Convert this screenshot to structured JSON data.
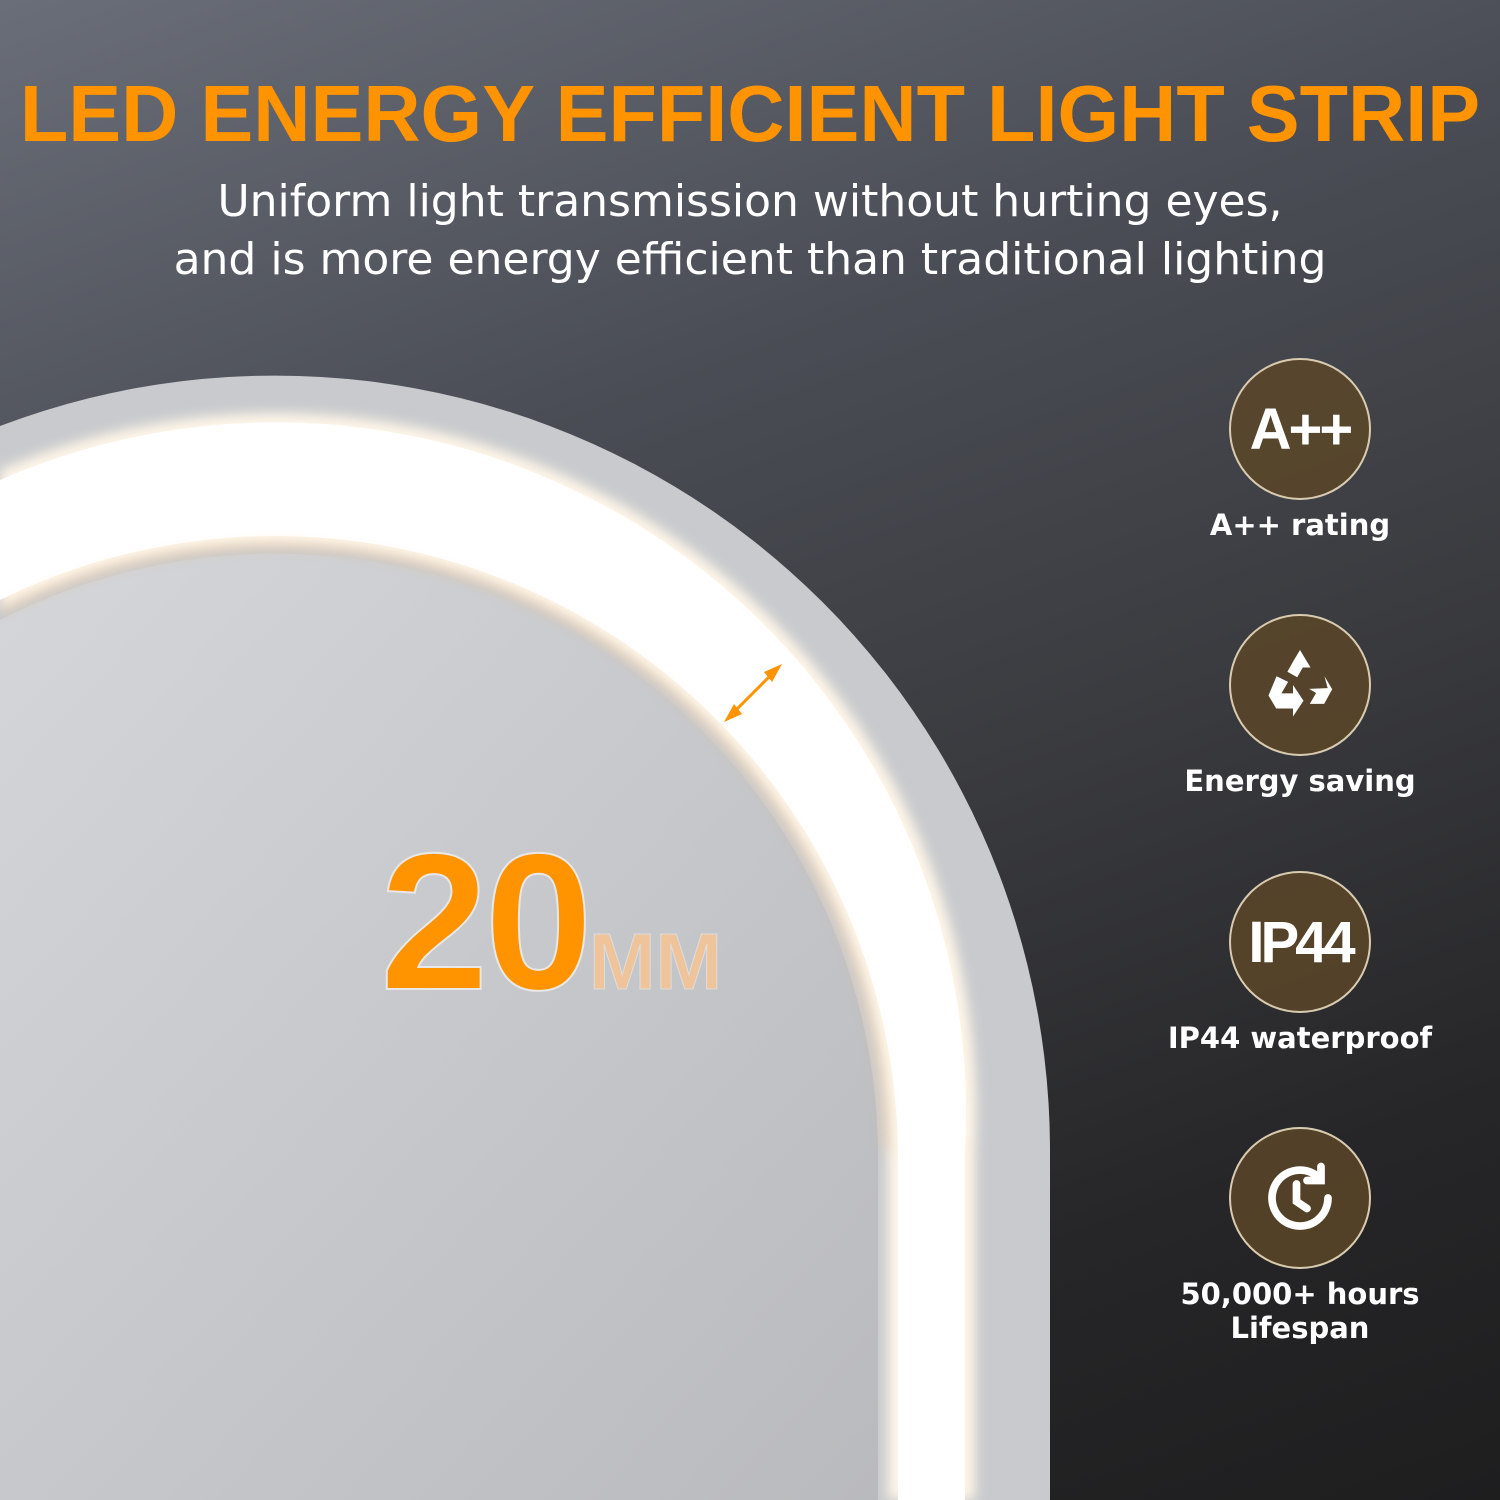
{
  "title": "LED ENERGY EFFICIENT LIGHT STRIP",
  "subtitle": [
    "Uniform light transmission without hurting eyes,",
    "and is more energy efficient than traditional lighting"
  ],
  "width_callout": {
    "value": "20",
    "unit": "MM"
  },
  "features": [
    {
      "icon": "a-plus-plus-icon",
      "badge": "A++",
      "label": "A++ rating"
    },
    {
      "icon": "recycle-icon",
      "label": "Energy saving"
    },
    {
      "icon": "ip44-icon",
      "badge": "IP44",
      "label": "IP44 waterproof"
    },
    {
      "icon": "clock-refresh-icon",
      "label": "50,000+ hours",
      "label2": "Lifespan"
    }
  ],
  "colors": {
    "accent": "#ff9300",
    "badge_bg": "#5a4628"
  }
}
